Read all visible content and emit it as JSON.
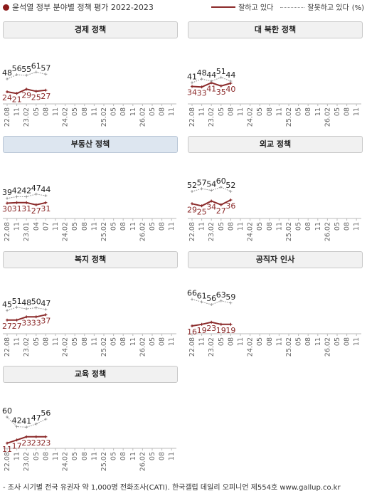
{
  "header": {
    "title": "윤석열 정부 분야별 정책 평가 2022-2023",
    "legend_approve": "잘하고 있다",
    "legend_disapprove": "잘못하고 있다",
    "legend_unit": "(%)"
  },
  "footer": {
    "note": "- 조사 시기별 전국 유권자 약 1,000명 전화조사(CATI). 한국갤럽 데일리 오피니언 제554호 www.gallup.co.kr"
  },
  "colors": {
    "approve": "#8b2a2a",
    "disapprove": "#8a8a8a",
    "axis": "#bbbbbb",
    "highlight_header": "#dde6f0"
  },
  "chart_data": [
    {
      "type": "line",
      "title": "경제 정책",
      "x": [
        "22.08",
        "11",
        "23.02",
        "04",
        "08"
      ],
      "tick_labels": [
        "22.08",
        "11",
        "23.02",
        "05",
        "08",
        "11",
        "24.02",
        "05",
        "08",
        "11",
        "25.02",
        "05",
        "08",
        "11",
        "26.02",
        "05",
        "08",
        "11"
      ],
      "series": [
        {
          "name": "잘하고 있다",
          "values": [
            24,
            21,
            29,
            25,
            27
          ]
        },
        {
          "name": "잘못하고 있다",
          "values": [
            48,
            56,
            55,
            61,
            57
          ]
        }
      ]
    },
    {
      "type": "line",
      "title": "대 북한 정책",
      "x": [
        "22.08",
        "11",
        "23.02",
        "04",
        "08"
      ],
      "tick_labels": [
        "22.08",
        "11",
        "23.02",
        "05",
        "08",
        "11",
        "24.02",
        "05",
        "08",
        "11",
        "25.02",
        "05",
        "08",
        "11",
        "26.02",
        "05",
        "08",
        "11"
      ],
      "series": [
        {
          "name": "잘하고 있다",
          "values": [
            34,
            33,
            41,
            35,
            40
          ]
        },
        {
          "name": "잘못하고 있다",
          "values": [
            41,
            48,
            44,
            51,
            44
          ]
        }
      ]
    },
    {
      "type": "line",
      "title": "부동산 정책",
      "highlight": true,
      "x": [
        "22.08",
        "11",
        "23.01",
        "04",
        "07"
      ],
      "tick_labels": [
        "22.08",
        "11",
        "23.01",
        "04",
        "07",
        "11",
        "24.02",
        "05",
        "08",
        "11",
        "25.02",
        "05",
        "08",
        "11",
        "26.02",
        "05",
        "08",
        "11"
      ],
      "series": [
        {
          "name": "잘하고 있다",
          "values": [
            30,
            31,
            31,
            27,
            31
          ]
        },
        {
          "name": "잘못하고 있다",
          "values": [
            39,
            42,
            42,
            47,
            44
          ]
        }
      ]
    },
    {
      "type": "line",
      "title": "외교 정책",
      "x": [
        "22.08",
        "11",
        "23.02",
        "04",
        "08"
      ],
      "tick_labels": [
        "22.08",
        "11",
        "23.02",
        "05",
        "08",
        "11",
        "24.02",
        "05",
        "08",
        "11",
        "25.02",
        "05",
        "08",
        "11",
        "26.02",
        "05",
        "08",
        "11"
      ],
      "series": [
        {
          "name": "잘하고 있다",
          "values": [
            29,
            25,
            34,
            27,
            36
          ]
        },
        {
          "name": "잘못하고 있다",
          "values": [
            52,
            57,
            54,
            60,
            52
          ]
        }
      ]
    },
    {
      "type": "line",
      "title": "복지 정책",
      "x": [
        "22.08",
        "11",
        "23.02",
        "04",
        "08"
      ],
      "tick_labels": [
        "22.08",
        "11",
        "23.02",
        "05",
        "08",
        "11",
        "24.02",
        "05",
        "08",
        "11",
        "25.02",
        "05",
        "08",
        "11",
        "26.02",
        "05",
        "08",
        "11"
      ],
      "series": [
        {
          "name": "잘하고 있다",
          "values": [
            27,
            27,
            33,
            33,
            37
          ]
        },
        {
          "name": "잘못하고 있다",
          "values": [
            45,
            51,
            48,
            50,
            47
          ]
        }
      ]
    },
    {
      "type": "line",
      "title": "공직자 인사",
      "x": [
        "22.08",
        "11",
        "23.02",
        "04",
        "08"
      ],
      "tick_labels": [
        "22.08",
        "11",
        "23.02",
        "05",
        "08",
        "11",
        "24.02",
        "05",
        "08",
        "11",
        "25.02",
        "05",
        "08",
        "11",
        "26.02",
        "05",
        "08",
        "11"
      ],
      "series": [
        {
          "name": "잘하고 있다",
          "values": [
            16,
            19,
            23,
            19,
            19
          ]
        },
        {
          "name": "잘못하고 있다",
          "values": [
            66,
            61,
            56,
            63,
            59
          ]
        }
      ]
    },
    {
      "type": "line",
      "title": "교육 정책",
      "x": [
        "22.08",
        "11",
        "23.02",
        "04",
        "08"
      ],
      "tick_labels": [
        "22.08",
        "11",
        "23.02",
        "05",
        "08",
        "11",
        "24.02",
        "05",
        "08",
        "11",
        "25.02",
        "05",
        "08",
        "11",
        "26.02",
        "05",
        "08",
        "11"
      ],
      "series": [
        {
          "name": "잘하고 있다",
          "values": [
            11,
            17,
            23,
            23,
            23
          ]
        },
        {
          "name": "잘못하고 있다",
          "values": [
            60,
            42,
            41,
            47,
            56
          ]
        }
      ]
    }
  ]
}
